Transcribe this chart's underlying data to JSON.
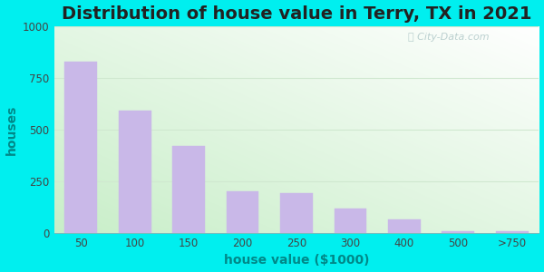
{
  "title": "Distribution of house value in Terry, TX in 2021",
  "xlabel": "house value ($1000)",
  "ylabel": "houses",
  "categories": [
    "50",
    "100",
    "150",
    "200",
    "250",
    "300",
    "400",
    "500",
    ">750"
  ],
  "values": [
    830,
    590,
    420,
    200,
    195,
    120,
    65,
    10,
    10
  ],
  "bar_color": "#c9b8e8",
  "bar_edgecolor": "#c9b8e8",
  "ylim": [
    0,
    1000
  ],
  "yticks": [
    0,
    250,
    500,
    750,
    1000
  ],
  "outer_bg_color": "#00efef",
  "plot_bg_color": "#e8f5e9",
  "grid_color": "#d0e8d0",
  "title_fontsize": 14,
  "title_color": "#222222",
  "axis_label_fontsize": 10,
  "axis_label_color": "#008888",
  "tick_fontsize": 8.5,
  "tick_color": "#444444",
  "watermark_text": "City-Data.com",
  "bar_width": 0.6
}
